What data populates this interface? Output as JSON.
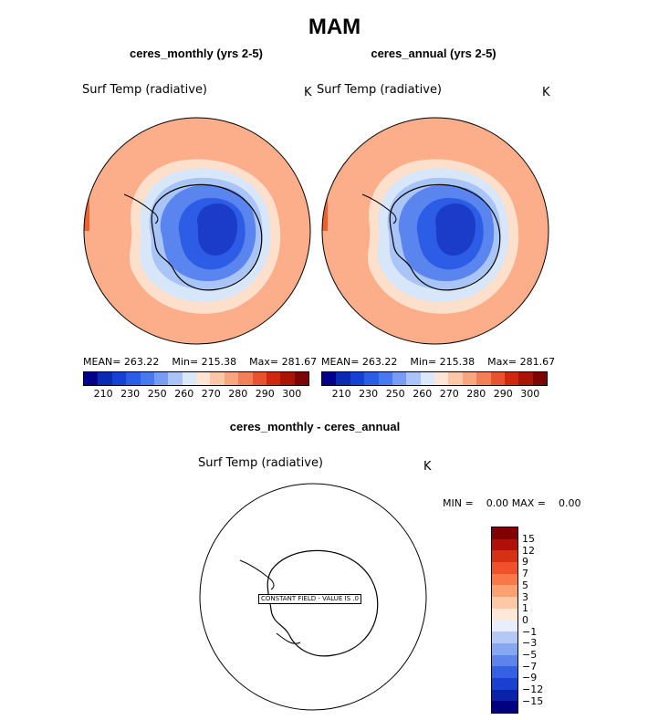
{
  "title": "MAM",
  "panels": [
    {
      "subtitle": "ceres_monthly (yrs 2-5)",
      "var_label": "Surf Temp (radiative)",
      "units": "K",
      "mean_label": "MEAN=",
      "mean": "263.22",
      "min_label": "Min=",
      "min": "215.38",
      "max_label": "Max=",
      "max": "281.67"
    },
    {
      "subtitle": "ceres_annual (yrs 2-5)",
      "var_label": "Surf Temp (radiative)",
      "units": "K",
      "mean_label": "MEAN=",
      "mean": "263.22",
      "min_label": "Min=",
      "min": "215.38",
      "max_label": "Max=",
      "max": "281.67"
    }
  ],
  "colorbar": {
    "colors": [
      "#00008b",
      "#0a2ab4",
      "#1840d2",
      "#2d5ce6",
      "#4a78f0",
      "#789cf4",
      "#a9c4f6",
      "#dbe8f9",
      "#fde4d4",
      "#fcc6a9",
      "#f9a582",
      "#f37f5a",
      "#e8522d",
      "#d02810",
      "#aa1406",
      "#7e0505"
    ],
    "tick_labels": [
      "210",
      "230",
      "250",
      "260",
      "270",
      "280",
      "290",
      "300"
    ]
  },
  "difference": {
    "subtitle": "ceres_monthly - ceres_annual",
    "var_label": "Surf Temp (radiative)",
    "units": "K",
    "min_label": "MIN =",
    "min": "0.00",
    "max_label": "MAX =",
    "max": "0.00",
    "constant_field_text": "CONSTANT FIELD - VALUE IS .0",
    "colorbar_colors": [
      "#800000",
      "#b01008",
      "#d63015",
      "#f0502a",
      "#f87848",
      "#fba070",
      "#fdc8a6",
      "#fee8d8",
      "#e8eefb",
      "#b4caf5",
      "#86a8f2",
      "#5c84ec",
      "#3460e2",
      "#1a40d0",
      "#0a22aa",
      "#000080"
    ],
    "tick_labels": [
      "15",
      "12",
      "9",
      "7",
      "5",
      "3",
      "1",
      "0",
      "−1",
      "−3",
      "−5",
      "−7",
      "−9",
      "−12",
      "−15"
    ]
  }
}
